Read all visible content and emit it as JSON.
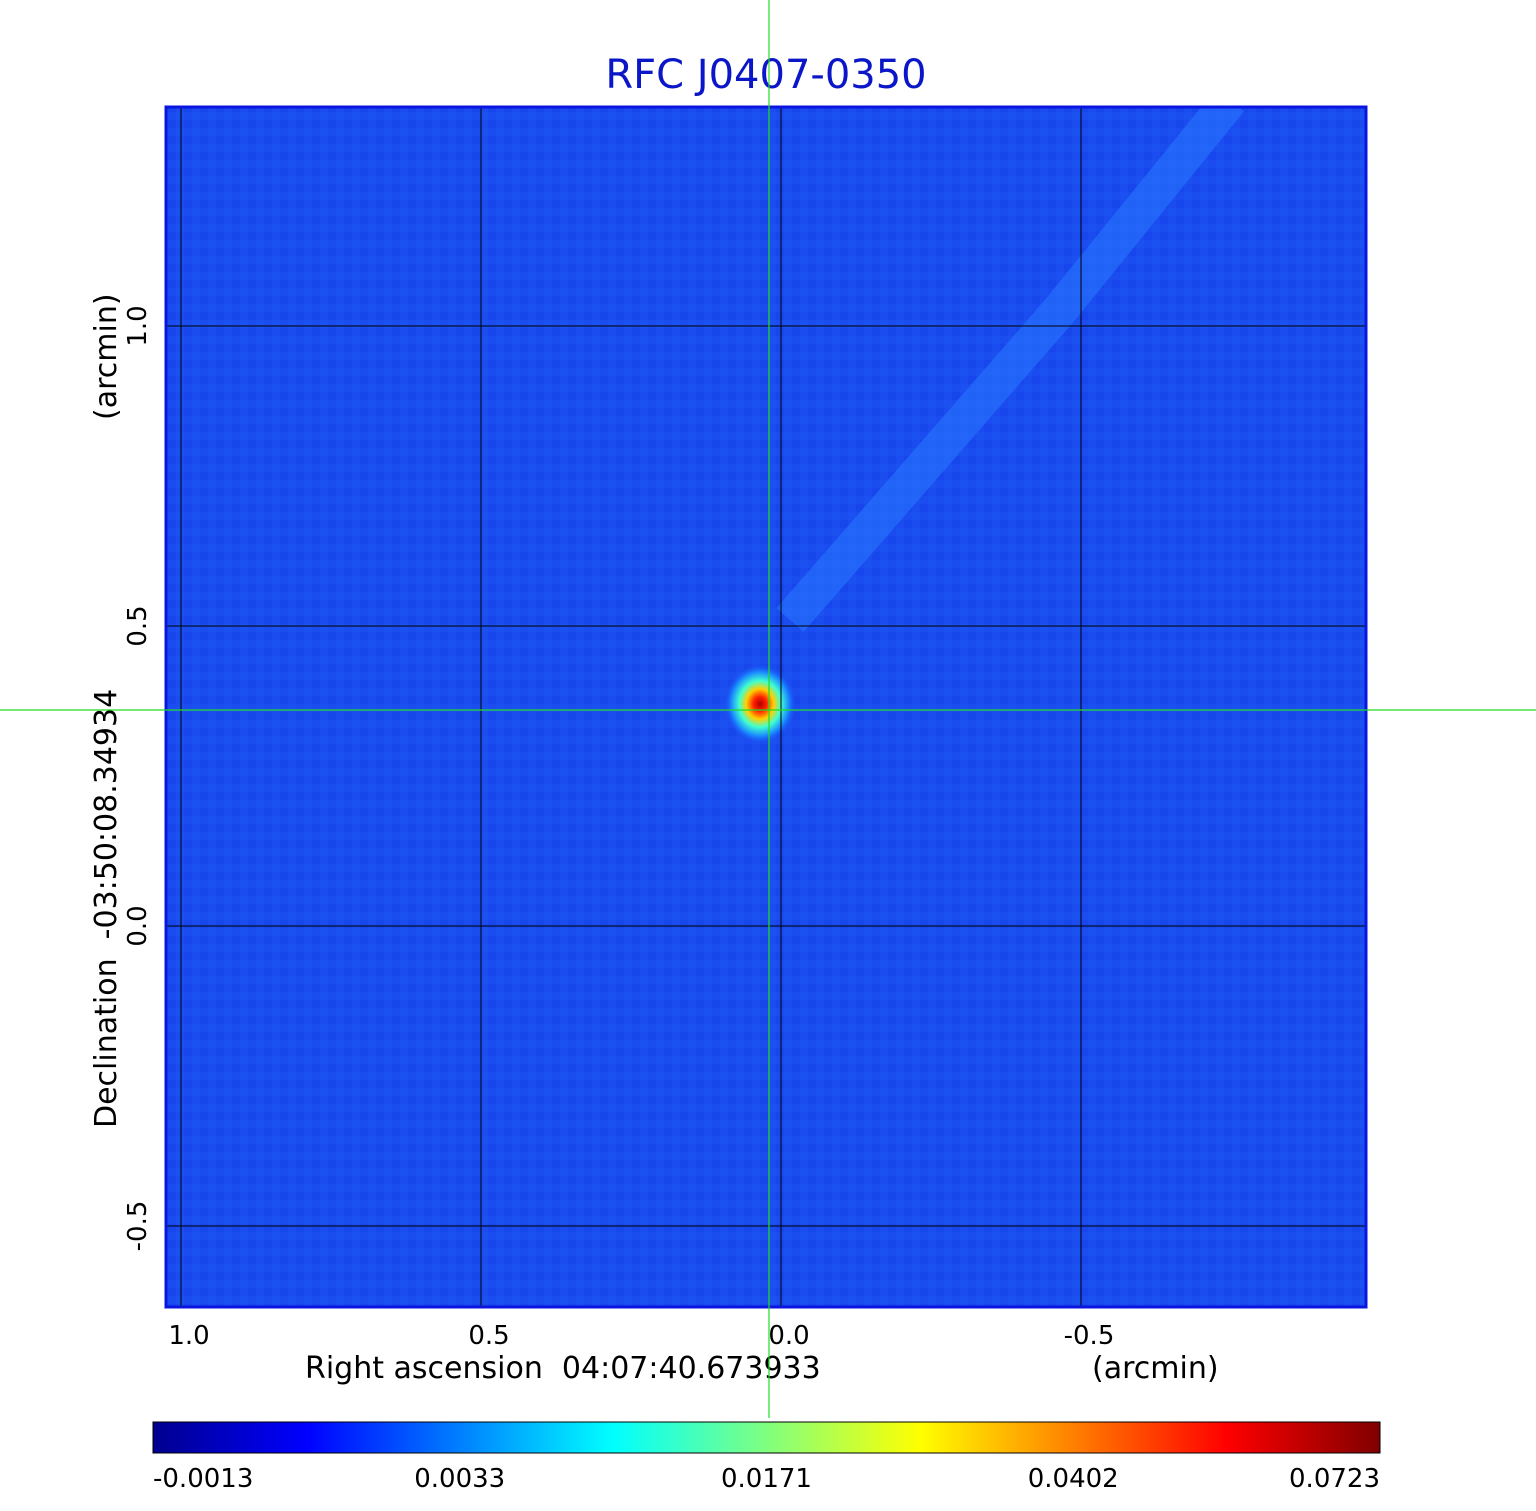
{
  "chart_data": {
    "type": "heatmap",
    "title": "RFC J0407-0350",
    "xlabel": "Right ascension  04:07:40.673933",
    "xunit": "(arcmin)",
    "ylabel": "Declination  -03:50:08.34934",
    "yunit": "(arcmin)",
    "xlim": [
      1.025,
      -0.975
    ],
    "ylim": [
      -0.635,
      1.365
    ],
    "x_ticks": [
      {
        "value": 1.0,
        "label": "1.0"
      },
      {
        "value": 0.5,
        "label": "0.5"
      },
      {
        "value": 0.0,
        "label": "0.0"
      },
      {
        "value": -0.5,
        "label": "-0.5"
      }
    ],
    "y_ticks": [
      {
        "value": -0.5,
        "label": "-0.5"
      },
      {
        "value": 0.0,
        "label": "0.0"
      },
      {
        "value": 0.5,
        "label": "0.5"
      },
      {
        "value": 1.0,
        "label": "1.0"
      }
    ],
    "grid": true,
    "crosshair": {
      "x": 0.02,
      "y": 0.36
    },
    "source_peak": {
      "x": 0.035,
      "y": 0.37,
      "value": 0.0723
    },
    "colorbar": {
      "colormap": "jet",
      "ticks": [
        "-0.0013",
        "0.0033",
        "0.0171",
        "0.0402",
        "0.0723"
      ]
    },
    "colors": {
      "title": "#0a16c8",
      "background_map": "#1a4cf0",
      "grid": "#000000",
      "crosshair": "#22dd22"
    }
  }
}
